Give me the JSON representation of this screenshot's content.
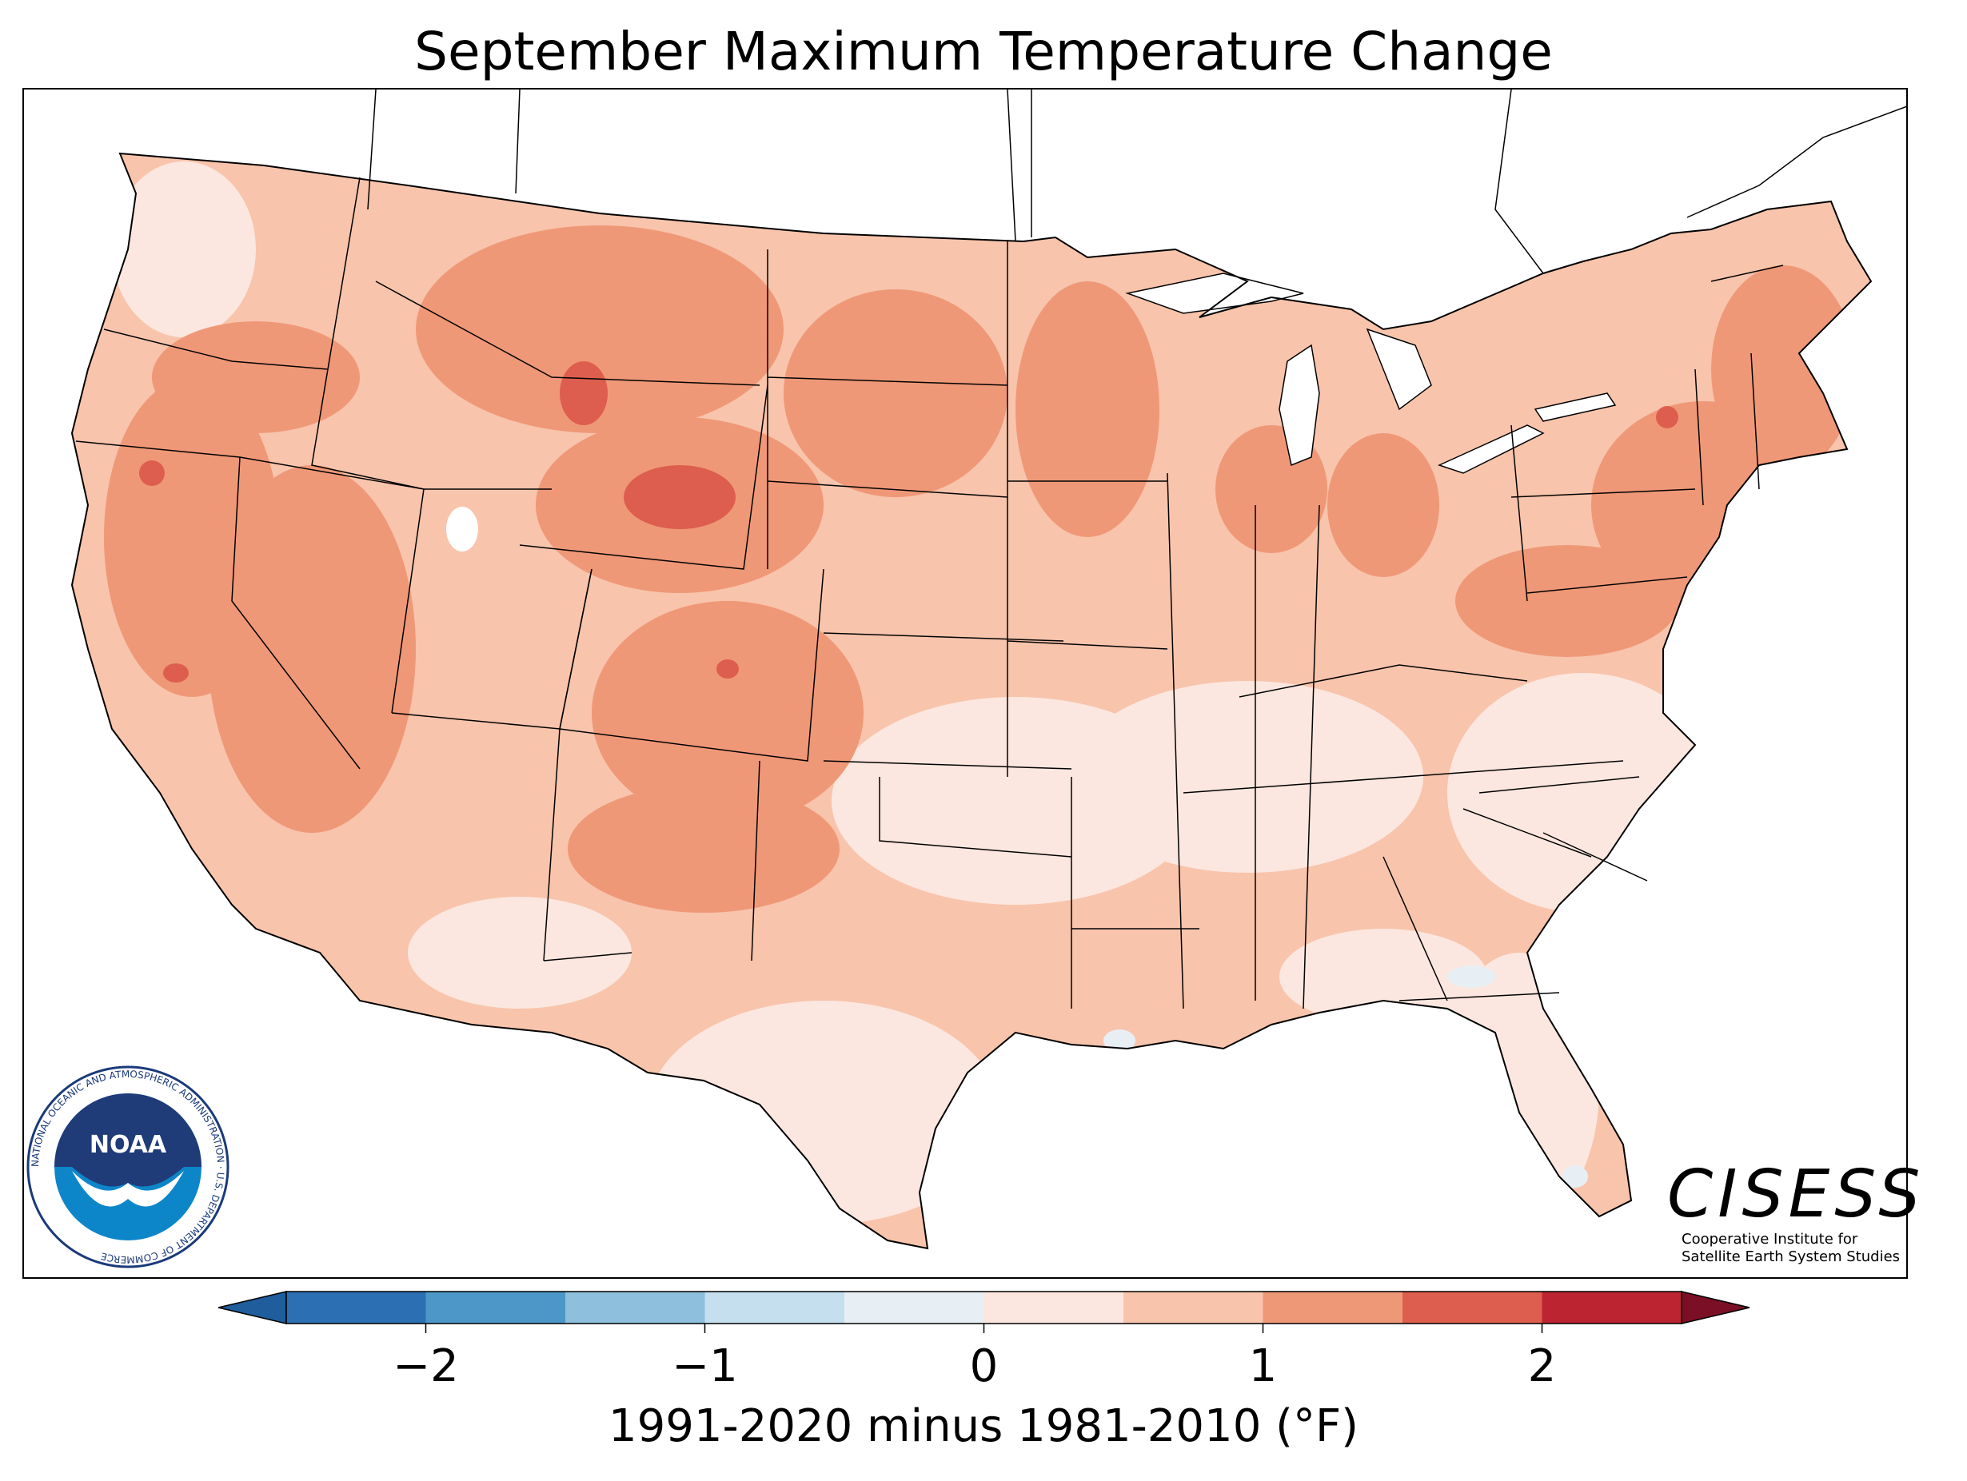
{
  "title": "September Maximum Temperature Change",
  "colorbar": {
    "label": "1991-2020 minus 1981-2010 (°F)",
    "ticks": [
      "−2",
      "−1",
      "0",
      "1",
      "2"
    ],
    "tick_values": [
      -2,
      -1,
      0,
      1,
      2
    ],
    "range": [
      -2.5,
      2.5
    ],
    "bin_width": 0.5,
    "extend": "both",
    "colors": [
      "#1f5d9c",
      "#2c6fb3",
      "#4d97c8",
      "#8ebfdc",
      "#c5dfee",
      "#e8eff4",
      "#fbe7df",
      "#f8c4ac",
      "#ef9877",
      "#dd5e4e",
      "#bd2431",
      "#7a0f26"
    ]
  },
  "map": {
    "region": "Contiguous United States",
    "dominant_colors": [
      "#f8c4ac",
      "#ef9877",
      "#fbe7df",
      "#dd5e4e"
    ],
    "water_color": "#ffffff",
    "boundary_color": "#000000"
  },
  "logos": {
    "noaa": {
      "text": "NOAA",
      "ring_text": "NATIONAL OCEANIC AND ATMOSPHERIC ADMINISTRATION · U.S. DEPARTMENT OF COMMERCE"
    },
    "cisess": {
      "name": "CISESS",
      "line1": "Cooperative Institute for",
      "line2": "Satellite Earth System Studies"
    }
  }
}
